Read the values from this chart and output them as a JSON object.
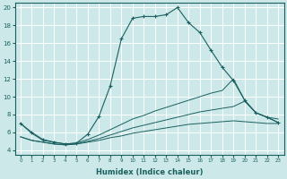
{
  "xlabel": "Humidex (Indice chaleur)",
  "ylabel": "",
  "xlim": [
    -0.5,
    23.5
  ],
  "ylim": [
    3.5,
    20.5
  ],
  "xticks": [
    0,
    1,
    2,
    3,
    4,
    5,
    6,
    7,
    8,
    9,
    10,
    11,
    12,
    13,
    14,
    15,
    16,
    17,
    18,
    19,
    20,
    21,
    22,
    23
  ],
  "yticks": [
    4,
    6,
    8,
    10,
    12,
    14,
    16,
    18,
    20
  ],
  "bg_color": "#cce8e8",
  "line_color": "#1a6060",
  "grid_color": "#ffffff",
  "main_line": {
    "x": [
      0,
      1,
      2,
      3,
      4,
      5,
      6,
      7,
      8,
      9,
      10,
      11,
      12,
      13,
      14,
      15,
      16,
      17,
      18,
      19,
      20,
      21,
      22,
      23
    ],
    "y": [
      7.0,
      6.0,
      5.2,
      4.9,
      4.7,
      4.8,
      5.8,
      7.8,
      11.2,
      16.5,
      18.8,
      19.0,
      19.0,
      19.2,
      20.0,
      18.3,
      17.2,
      15.2,
      13.3,
      11.8,
      9.6,
      8.2,
      7.7,
      7.1
    ]
  },
  "line2": {
    "x": [
      0,
      1,
      2,
      3,
      4,
      5,
      6,
      7,
      8,
      9,
      10,
      11,
      12,
      13,
      14,
      15,
      16,
      17,
      18,
      19,
      20,
      21,
      22,
      23
    ],
    "y": [
      7.0,
      5.9,
      5.1,
      4.9,
      4.7,
      4.8,
      5.2,
      5.7,
      6.3,
      6.9,
      7.5,
      7.9,
      8.4,
      8.8,
      9.2,
      9.6,
      10.0,
      10.4,
      10.7,
      12.0,
      9.6,
      8.2,
      7.7,
      7.1
    ]
  },
  "line3": {
    "x": [
      0,
      1,
      2,
      3,
      4,
      5,
      6,
      7,
      8,
      9,
      10,
      11,
      12,
      13,
      14,
      15,
      16,
      17,
      18,
      19,
      20,
      21,
      22,
      23
    ],
    "y": [
      5.5,
      5.1,
      4.9,
      4.7,
      4.6,
      4.7,
      5.0,
      5.3,
      5.7,
      6.1,
      6.5,
      6.8,
      7.1,
      7.4,
      7.7,
      8.0,
      8.3,
      8.5,
      8.7,
      8.9,
      9.5,
      8.2,
      7.7,
      7.5
    ]
  },
  "line4": {
    "x": [
      0,
      1,
      2,
      3,
      4,
      5,
      6,
      7,
      8,
      9,
      10,
      11,
      12,
      13,
      14,
      15,
      16,
      17,
      18,
      19,
      20,
      21,
      22,
      23
    ],
    "y": [
      5.5,
      5.1,
      4.9,
      4.7,
      4.6,
      4.7,
      4.9,
      5.1,
      5.4,
      5.6,
      5.9,
      6.1,
      6.3,
      6.5,
      6.7,
      6.9,
      7.0,
      7.1,
      7.2,
      7.3,
      7.2,
      7.1,
      7.0,
      7.0
    ]
  }
}
